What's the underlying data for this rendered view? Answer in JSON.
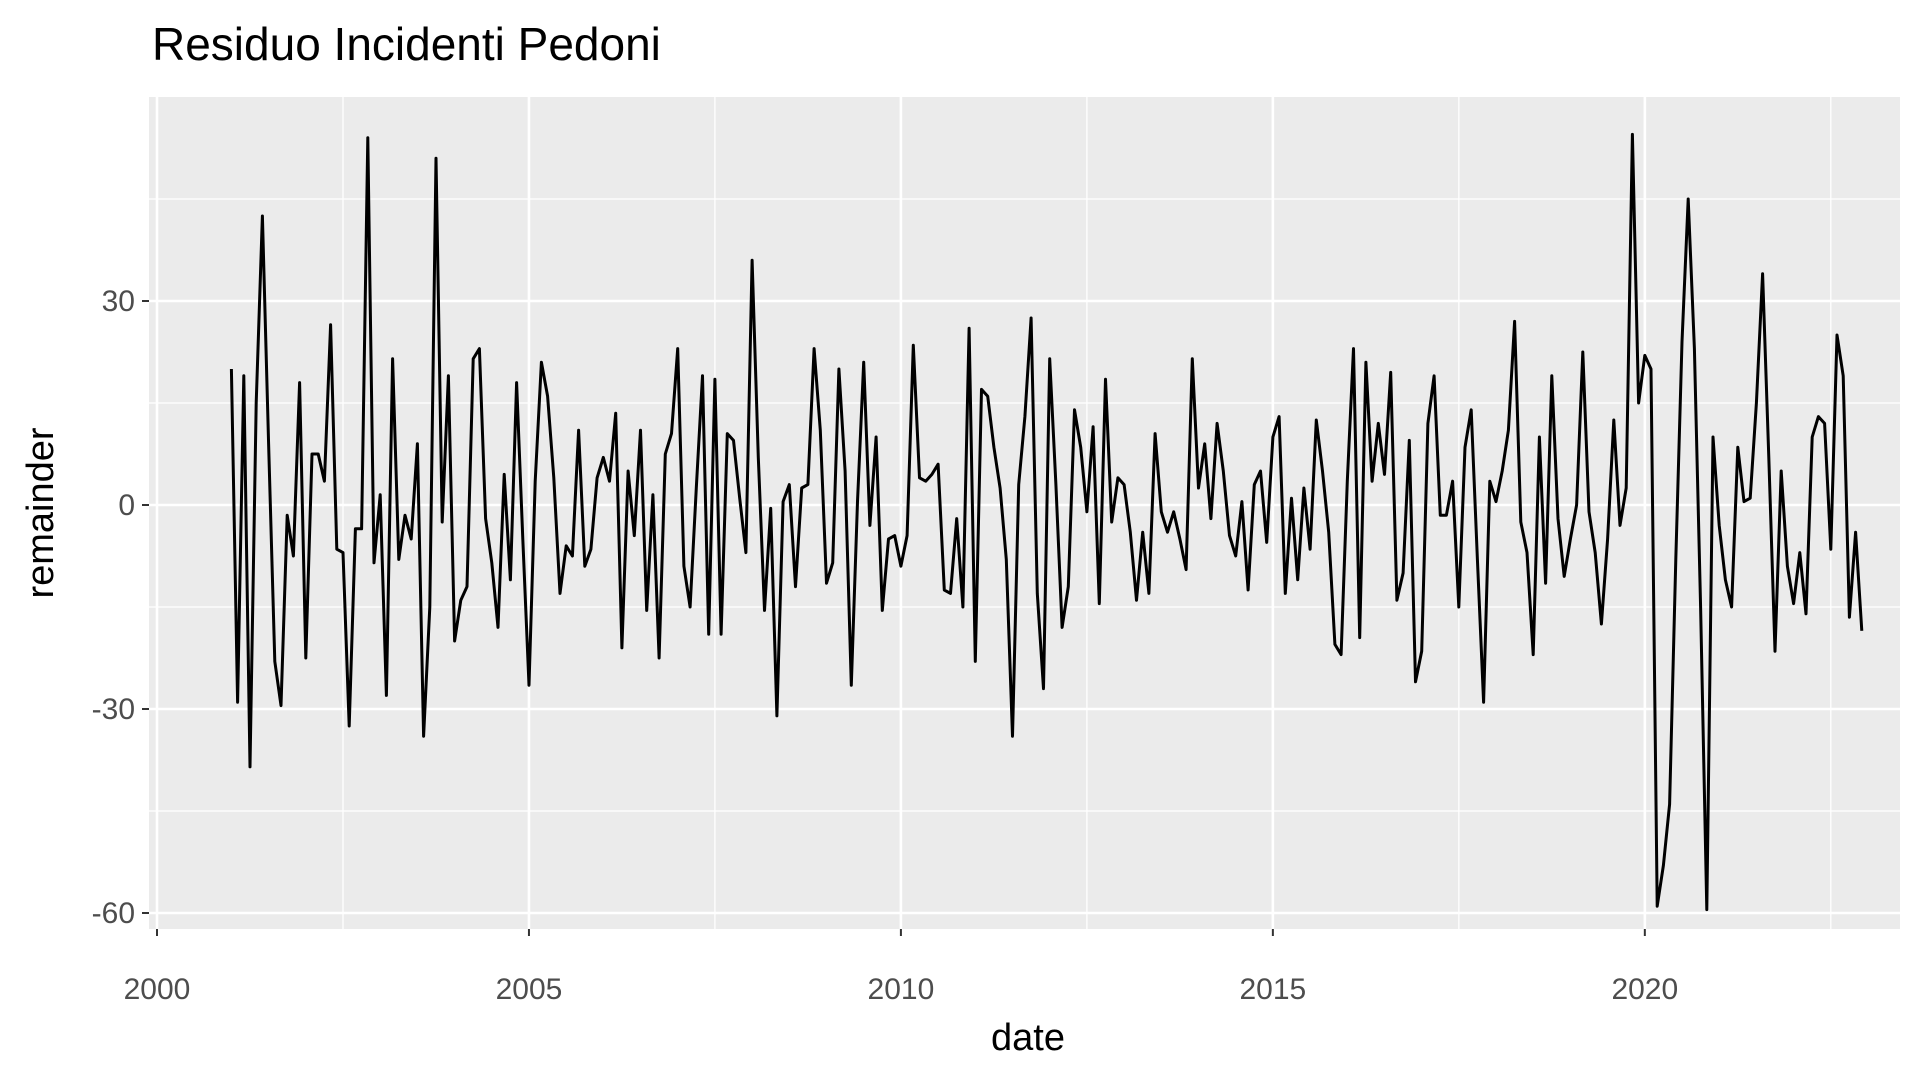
{
  "chart_data": {
    "type": "line",
    "title": "Residuo Incidenti Pedoni",
    "xlabel": "date",
    "ylabel": "remainder",
    "x_ticks": [
      "2000",
      "2005",
      "2010",
      "2015",
      "2020"
    ],
    "y_ticks": [
      "-60",
      "-30",
      "0",
      "30"
    ],
    "xlim": [
      "2000-01-01",
      "2023-09-01"
    ],
    "ylim": [
      -62,
      60
    ],
    "grid": true,
    "background": "#EBEBEB",
    "line_color": "#000000",
    "series": [
      {
        "x": [
          "2001-01",
          "2001-02",
          "2001-03",
          "2001-04",
          "2001-05",
          "2001-06",
          "2001-07",
          "2001-08",
          "2001-09",
          "2001-10",
          "2001-11",
          "2001-12",
          "2002-01",
          "2002-02",
          "2002-03",
          "2002-04",
          "2002-05",
          "2002-06",
          "2002-07",
          "2002-08",
          "2002-09",
          "2002-10",
          "2002-11",
          "2002-12",
          "2003-01",
          "2003-02",
          "2003-03",
          "2003-04",
          "2003-05",
          "2003-06",
          "2003-07",
          "2003-08",
          "2003-09",
          "2003-10",
          "2003-11",
          "2003-12",
          "2004-01",
          "2004-02",
          "2004-03",
          "2004-04",
          "2004-05",
          "2004-06",
          "2004-07",
          "2004-08",
          "2004-09",
          "2004-10",
          "2004-11",
          "2004-12",
          "2005-01",
          "2005-02",
          "2005-03",
          "2005-04",
          "2005-05",
          "2005-06",
          "2005-07",
          "2005-08",
          "2005-09",
          "2005-10",
          "2005-11",
          "2005-12",
          "2006-01",
          "2006-02",
          "2006-03",
          "2006-04",
          "2006-05",
          "2006-06",
          "2006-07",
          "2006-08",
          "2006-09",
          "2006-10",
          "2006-11",
          "2006-12",
          "2007-01",
          "2007-02",
          "2007-03",
          "2007-04",
          "2007-05",
          "2007-06",
          "2007-07",
          "2007-08",
          "2007-09",
          "2007-10",
          "2007-11",
          "2007-12",
          "2008-01",
          "2008-02",
          "2008-03",
          "2008-04",
          "2008-05",
          "2008-06",
          "2008-07",
          "2008-08",
          "2008-09",
          "2008-10",
          "2008-11",
          "2008-12",
          "2009-01",
          "2009-02",
          "2009-03",
          "2009-04",
          "2009-05",
          "2009-06",
          "2009-07",
          "2009-08",
          "2009-09",
          "2009-10",
          "2009-11",
          "2009-12",
          "2010-01",
          "2010-02",
          "2010-03",
          "2010-04",
          "2010-05",
          "2010-06",
          "2010-07",
          "2010-08",
          "2010-09",
          "2010-10",
          "2010-11",
          "2010-12",
          "2011-01",
          "2011-02",
          "2011-03",
          "2011-04",
          "2011-05",
          "2011-06",
          "2011-07",
          "2011-08",
          "2011-09",
          "2011-10",
          "2011-11",
          "2011-12",
          "2012-01",
          "2012-02",
          "2012-03",
          "2012-04",
          "2012-05",
          "2012-06",
          "2012-07",
          "2012-08",
          "2012-09",
          "2012-10",
          "2012-11",
          "2012-12",
          "2013-01",
          "2013-02",
          "2013-03",
          "2013-04",
          "2013-05",
          "2013-06",
          "2013-07",
          "2013-08",
          "2013-09",
          "2013-10",
          "2013-11",
          "2013-12",
          "2014-01",
          "2014-02",
          "2014-03",
          "2014-04",
          "2014-05",
          "2014-06",
          "2014-07",
          "2014-08",
          "2014-09",
          "2014-10",
          "2014-11",
          "2014-12",
          "2015-01",
          "2015-02",
          "2015-03",
          "2015-04",
          "2015-05",
          "2015-06",
          "2015-07",
          "2015-08",
          "2015-09",
          "2015-10",
          "2015-11",
          "2015-12",
          "2016-01",
          "2016-02",
          "2016-03",
          "2016-04",
          "2016-05",
          "2016-06",
          "2016-07",
          "2016-08",
          "2016-09",
          "2016-10",
          "2016-11",
          "2016-12",
          "2017-01",
          "2017-02",
          "2017-03",
          "2017-04",
          "2017-05",
          "2017-06",
          "2017-07",
          "2017-08",
          "2017-09",
          "2017-10",
          "2017-11",
          "2017-12",
          "2018-01",
          "2018-02",
          "2018-03",
          "2018-04",
          "2018-05",
          "2018-06",
          "2018-07",
          "2018-08",
          "2018-09",
          "2018-10",
          "2018-11",
          "2018-12",
          "2019-01",
          "2019-02",
          "2019-03",
          "2019-04",
          "2019-05",
          "2019-06",
          "2019-07",
          "2019-08",
          "2019-09",
          "2019-10",
          "2019-11",
          "2019-12",
          "2020-01",
          "2020-02",
          "2020-03",
          "2020-04",
          "2020-05",
          "2020-06",
          "2020-07",
          "2020-08",
          "2020-09",
          "2020-10",
          "2020-11",
          "2020-12",
          "2021-01",
          "2021-02",
          "2021-03",
          "2021-04",
          "2021-05",
          "2021-06",
          "2021-07",
          "2021-08",
          "2021-09",
          "2021-10",
          "2021-11",
          "2021-12",
          "2022-01",
          "2022-02",
          "2022-03",
          "2022-04",
          "2022-05",
          "2022-06",
          "2022-07",
          "2022-08",
          "2022-09",
          "2022-10",
          "2022-11",
          "2022-12"
        ],
        "y": [
          20,
          -29,
          19,
          -38.5,
          15,
          42.5,
          9,
          -23,
          -29.5,
          -1.5,
          -7.5,
          18,
          -22.5,
          7.5,
          7.5,
          3.5,
          26.5,
          -6.5,
          -7,
          -32.5,
          -3.5,
          -3.5,
          54,
          -8.5,
          1.5,
          -28,
          21.5,
          -8,
          -1.5,
          -5,
          9,
          -34,
          -15,
          51,
          -2.5,
          19,
          -20,
          -14,
          -12,
          21.5,
          23,
          -2,
          -8.5,
          -18,
          4.5,
          -11,
          18,
          -5,
          -26.5,
          3.5,
          21,
          16,
          4,
          -13,
          -6,
          -7.5,
          11,
          -9,
          -6.5,
          4,
          7,
          3.5,
          13.5,
          -21,
          5,
          -4.5,
          11,
          -15.5,
          1.5,
          -22.5,
          7.5,
          10.5,
          23,
          -9,
          -15,
          2.5,
          19,
          -19,
          18.5,
          -19,
          10.5,
          9.5,
          1,
          -7,
          36,
          7,
          -15.5,
          -0.5,
          -31,
          0.5,
          3,
          -12,
          2.5,
          3,
          23,
          11,
          -11.5,
          -8.5,
          20,
          5,
          -26.5,
          0.5,
          21,
          -3,
          10,
          -15.5,
          -5,
          -4.5,
          -9,
          -4.5,
          23.5,
          4,
          3.5,
          4.5,
          6,
          -12.5,
          -13,
          -2,
          -15,
          26,
          -23,
          17,
          16,
          8.5,
          2.5,
          -8,
          -34,
          3,
          13,
          27.5,
          -13,
          -27,
          21.5,
          3,
          -18,
          -12,
          14,
          8.5,
          -1,
          11.5,
          -14.5,
          18.5,
          -2.5,
          4,
          3,
          -4,
          -14,
          -4,
          -13,
          10.5,
          -1,
          -4,
          -1,
          -5,
          -9.5,
          21.5,
          2.5,
          9,
          -2,
          12,
          5,
          -4.5,
          -7.5,
          0.5,
          -12.5,
          3,
          5,
          -5.5,
          10,
          13,
          -13,
          1,
          -11,
          2.5,
          -6.5,
          12.5,
          5,
          -4,
          -20.5,
          -22,
          3.5,
          23,
          -19.5,
          21,
          3.5,
          12,
          4.5,
          19.5,
          -14,
          -10,
          9.5,
          -26,
          -21.5,
          12,
          19,
          -1.5,
          -1.5,
          3.5,
          -15,
          8.5,
          14,
          -8,
          -29,
          3.5,
          0.5,
          5,
          11,
          27,
          -2.5,
          -7,
          -22,
          10,
          -11.5,
          19,
          -2,
          -10.5,
          -5,
          0,
          22.5,
          -1,
          -7,
          -17.5,
          -5,
          12.5,
          -3,
          2.5,
          54.5,
          15,
          22,
          20,
          -59,
          -53,
          -44,
          -8,
          24,
          45,
          23,
          -15,
          -59.5,
          10,
          -3,
          -11,
          -15,
          8.5,
          0.5,
          1,
          15,
          34,
          7,
          -21.5,
          5,
          -9,
          -14.5,
          -7,
          -16,
          10,
          13,
          12,
          -6.5,
          25,
          19,
          -16.5,
          -4,
          -18.5
        ]
      }
    ]
  }
}
